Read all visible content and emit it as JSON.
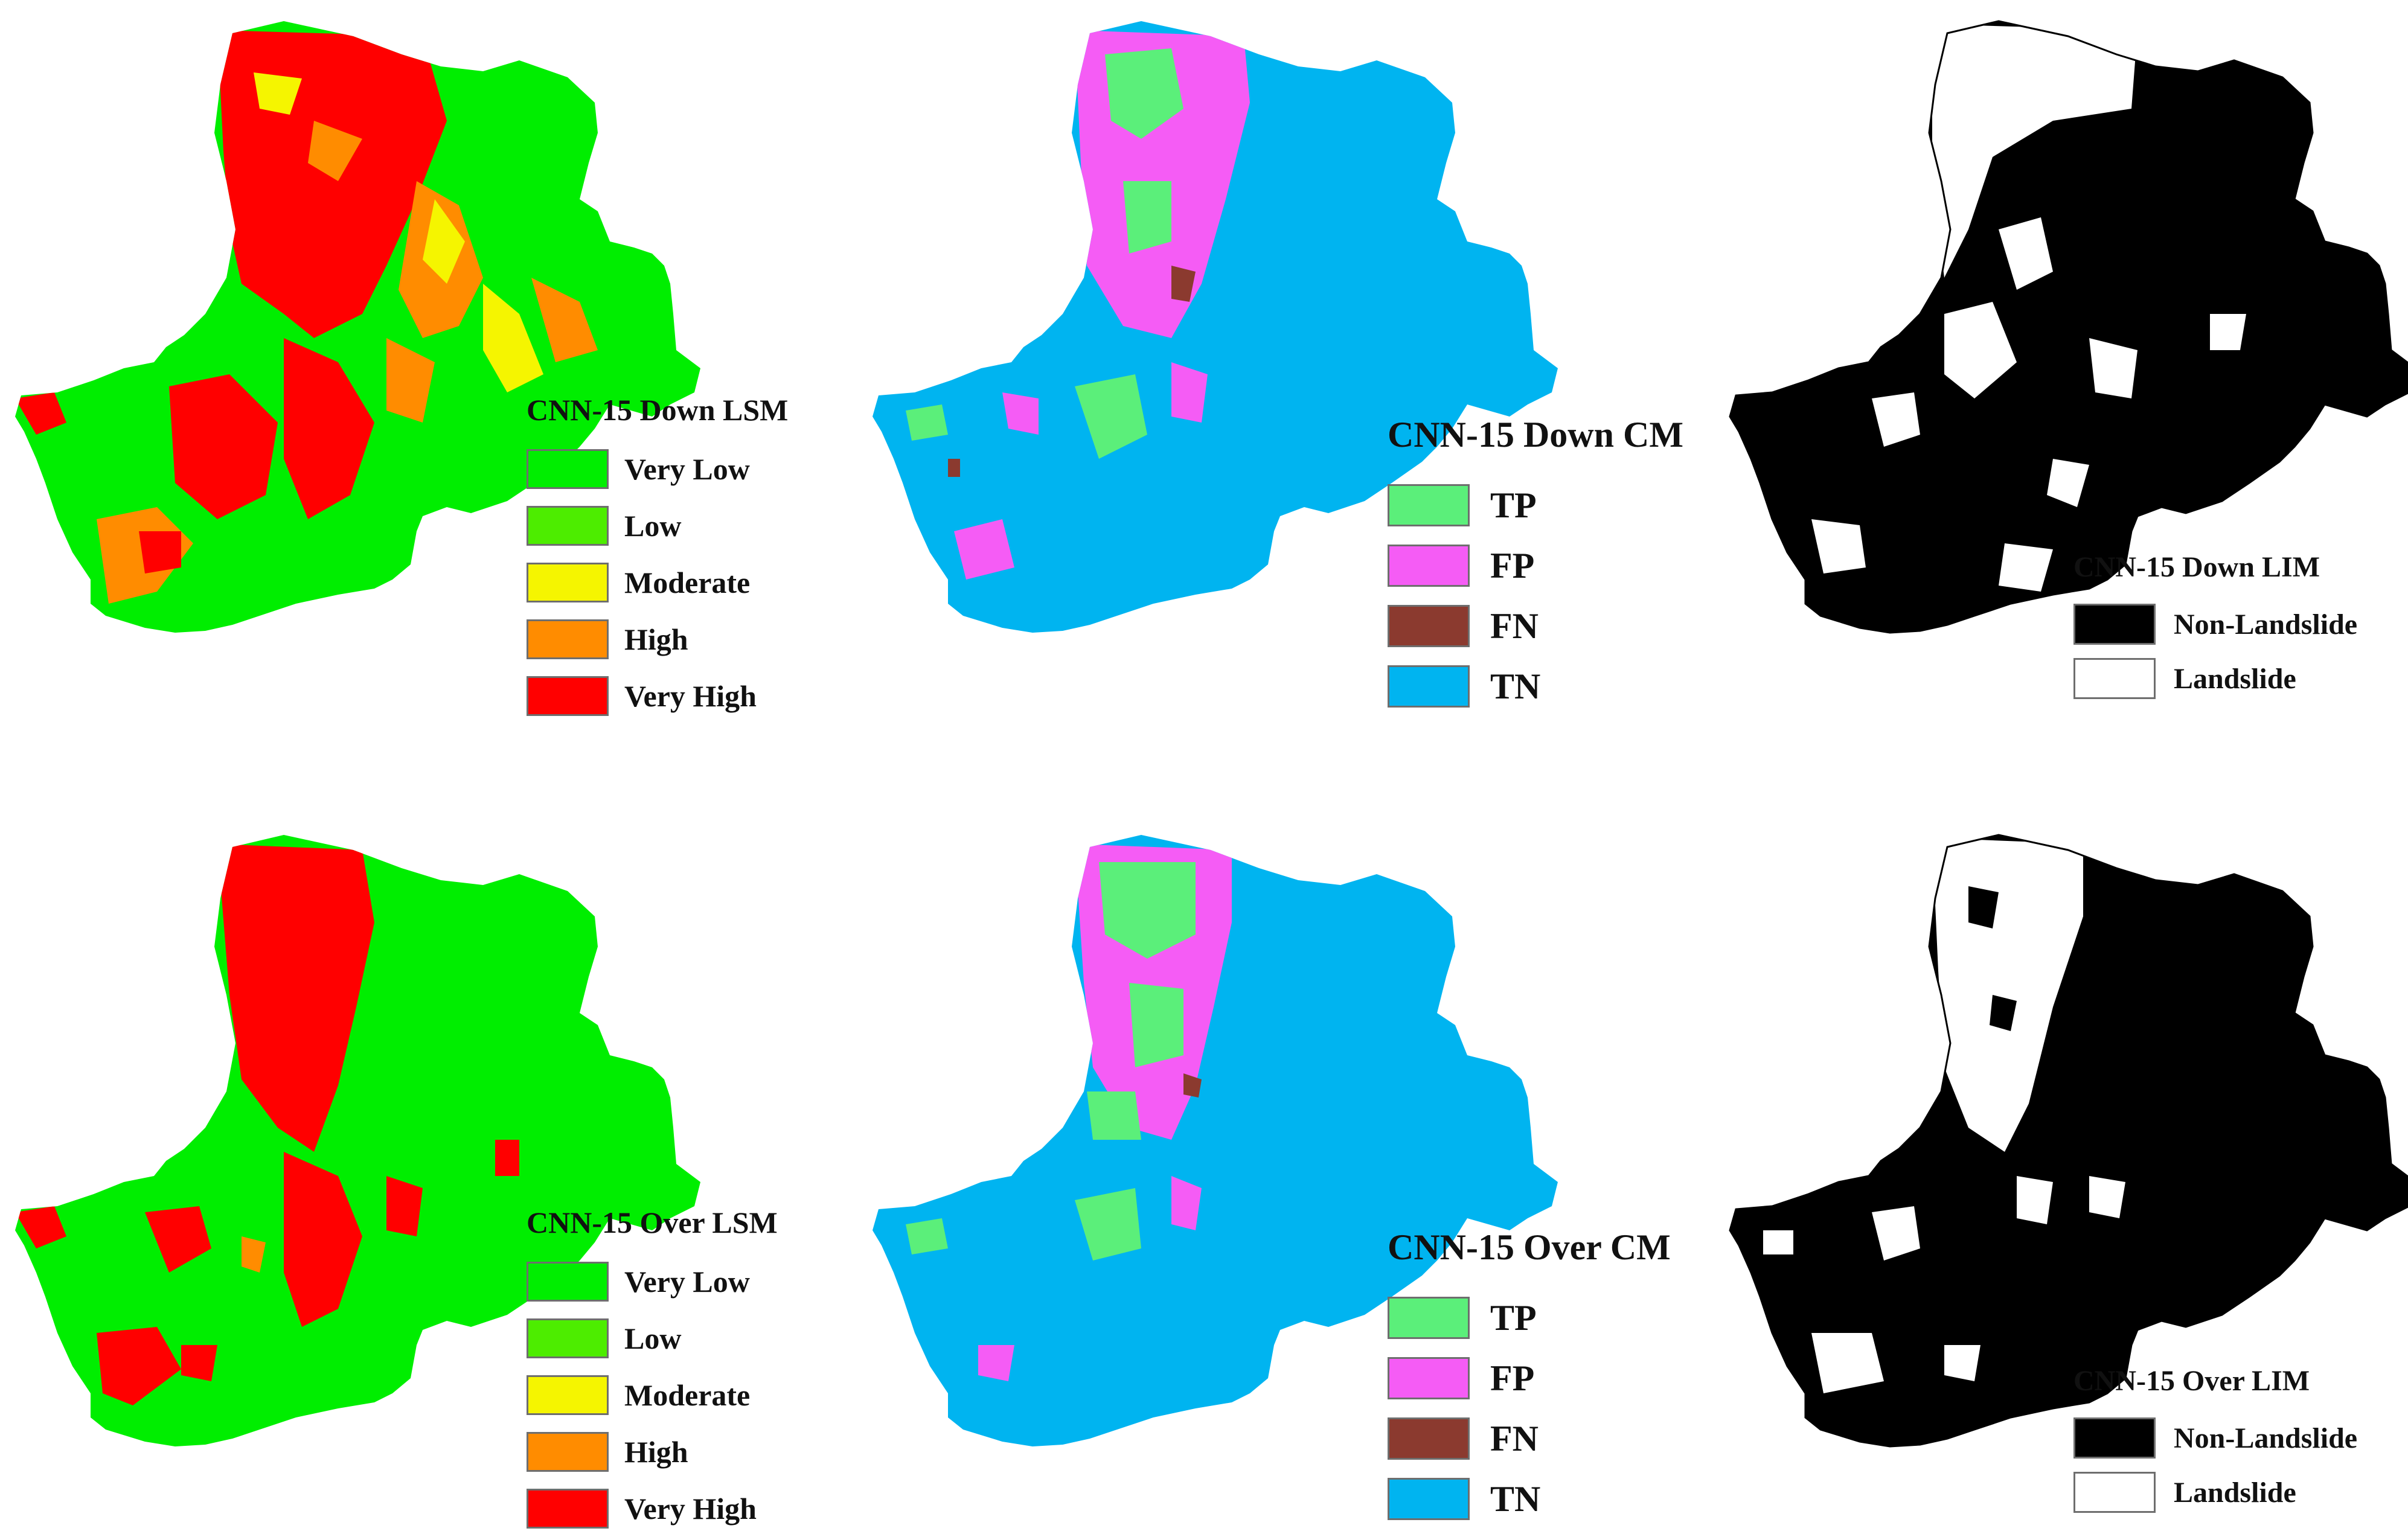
{
  "colors": {
    "very_low": "#00ee00",
    "low": "#4ded00",
    "moderate": "#f5f500",
    "high": "#ff8c00",
    "very_high": "#ff0000",
    "tp": "#5bef7a",
    "fp": "#f55cf5",
    "fn": "#8b3a2f",
    "tn": "#00b4f0",
    "non_landslide": "#000000",
    "landslide": "#ffffff"
  },
  "panels": {
    "down_lsm": {
      "title": "CNN-15 Down LSM",
      "items": [
        "Very Low",
        "Low",
        "Moderate",
        "High",
        "Very High"
      ]
    },
    "down_cm": {
      "title": "CNN-15 Down CM",
      "items": [
        "TP",
        "FP",
        "FN",
        "TN"
      ]
    },
    "down_lim": {
      "title": "CNN-15 Down LIM",
      "items": [
        "Non-Landslide",
        "Landslide"
      ]
    },
    "over_lsm": {
      "title": "CNN-15 Over LSM",
      "items": [
        "Very Low",
        "Low",
        "Moderate",
        "High",
        "Very High"
      ]
    },
    "over_cm": {
      "title": "CNN-15 Over CM",
      "items": [
        "TP",
        "FP",
        "FN",
        "TN"
      ]
    },
    "over_lim": {
      "title": "CNN-15 Over LIM",
      "items": [
        "Non-Landslide",
        "Landslide"
      ]
    }
  }
}
